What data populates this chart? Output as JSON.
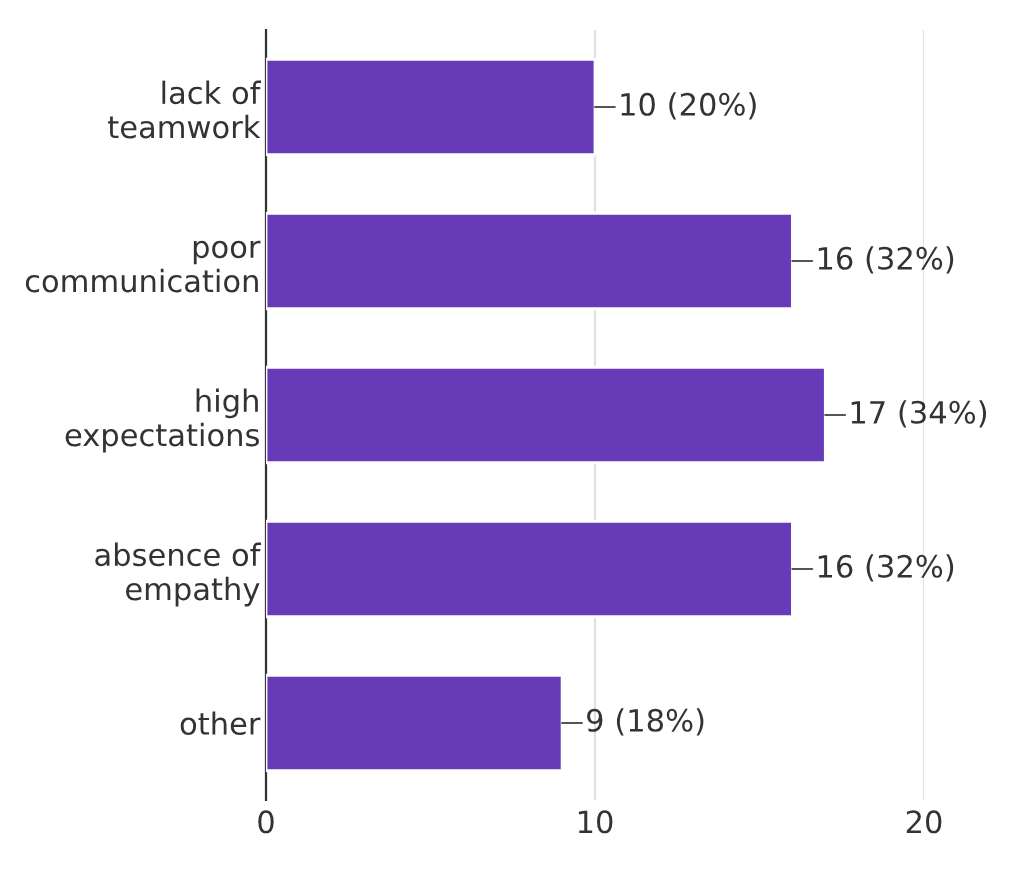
{
  "chart_data": {
    "type": "bar",
    "orientation": "horizontal",
    "categories": [
      "lack of\nteamwork",
      "poor\ncommunication",
      "high\nexpectations",
      "absence of\nempathy",
      "other"
    ],
    "values": [
      10,
      16,
      17,
      16,
      9
    ],
    "value_labels": [
      "10 (20%)",
      "16 (32%)",
      "17 (34%)",
      "16 (32%)",
      "9 (18%)"
    ],
    "color": "#673ab7",
    "xlim": [
      0,
      20
    ],
    "xticks": [
      0,
      10,
      20
    ],
    "grid": "x"
  }
}
